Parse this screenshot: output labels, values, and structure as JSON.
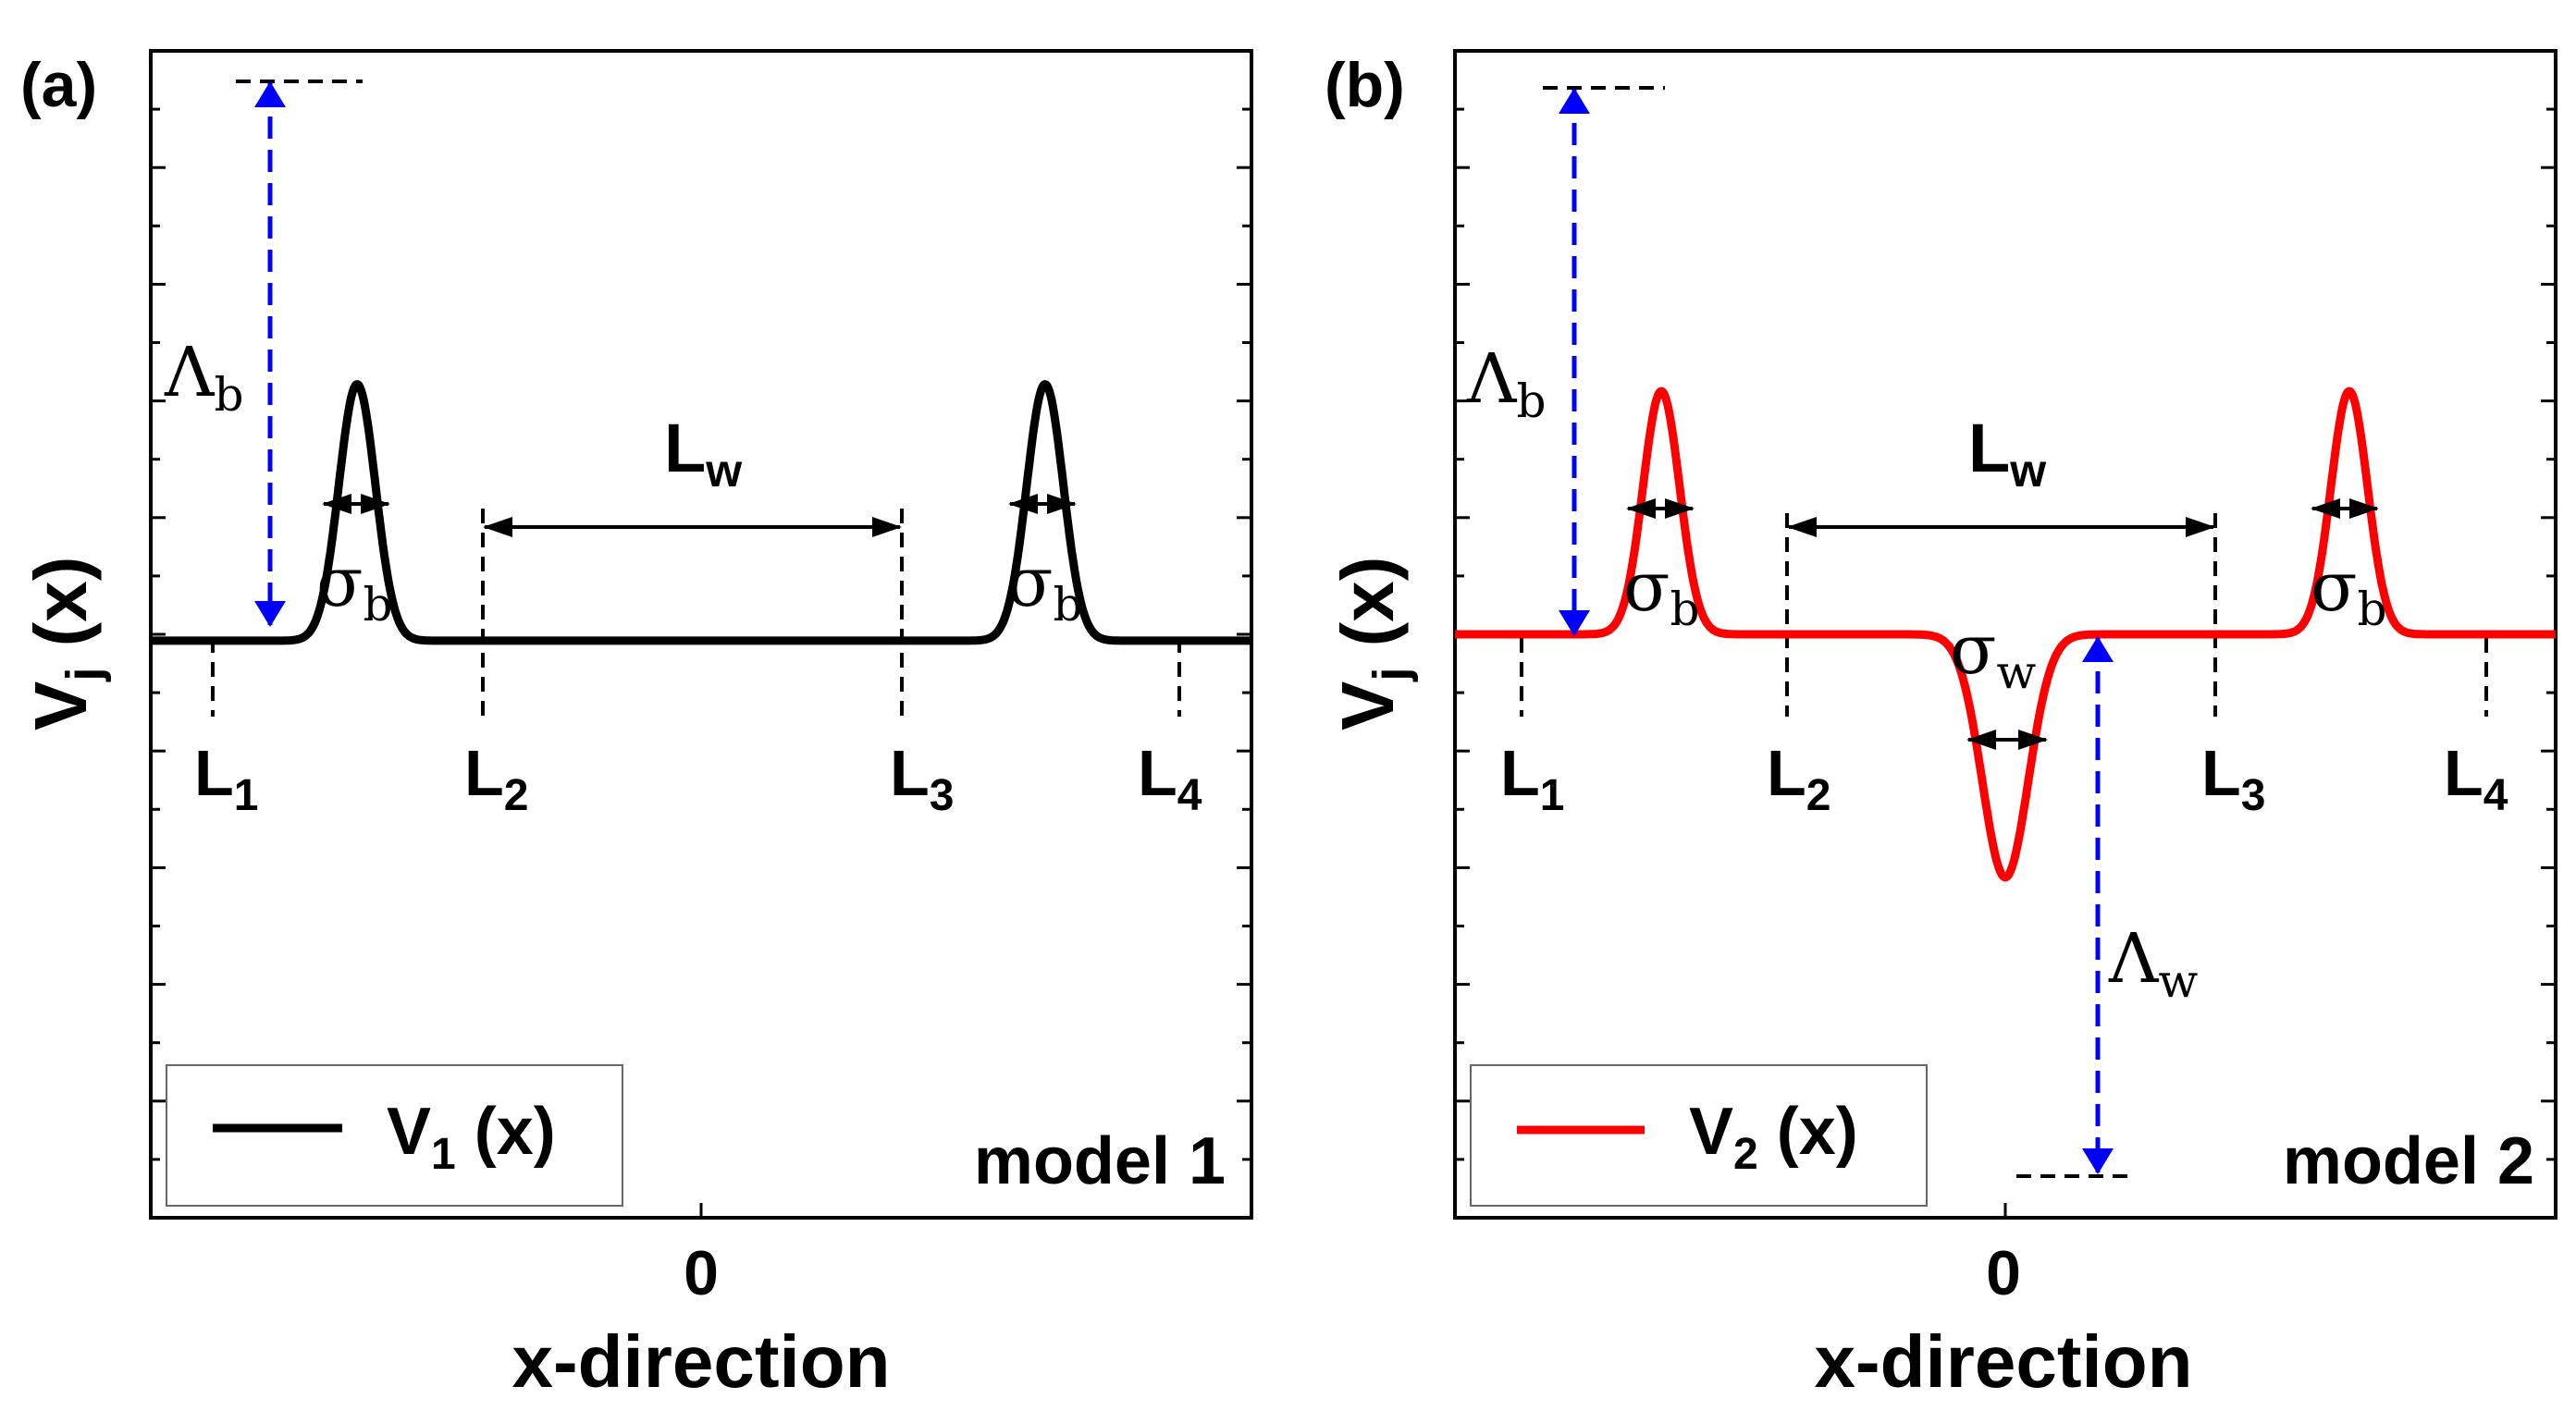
{
  "chart_data": [
    {
      "type": "line",
      "panel_label": "(a)",
      "model_label": "model 1",
      "xlabel": "x-direction",
      "ylabel": {
        "main": "V",
        "sub": "j",
        "tail": " (x)"
      },
      "x_tick_label": "0",
      "xlim": [
        -6,
        6
      ],
      "ylim": [
        -2.25,
        2.3
      ],
      "series": [
        {
          "name": "V1 (x)",
          "legend": {
            "main": "V",
            "sub": "1",
            "tail": " (x)"
          },
          "color": "#000000",
          "function": "barrier_height*exp(-(x+3.75)^2/(2*sigma_b^2)) + barrier_height*exp(-(x-3.75)^2/(2*sigma_b^2))",
          "parameters": {
            "barrier_height": 1.0,
            "barrier_centers": [
              -3.75,
              3.75
            ],
            "sigma_b": 0.2
          }
        }
      ],
      "boundaries": {
        "labels": [
          "L1",
          "L2",
          "L3",
          "L4"
        ],
        "positions": [
          -5.4,
          -2.4,
          2.2,
          5.2
        ]
      },
      "annotations": {
        "barrier_height": {
          "main": "Λ",
          "sub": "b"
        },
        "barrier_width": {
          "main": "σ",
          "sub": "b"
        },
        "well_width": {
          "main": "L",
          "sub": "w"
        }
      }
    },
    {
      "type": "line",
      "panel_label": "(b)",
      "model_label": "model 2",
      "xlabel": "x-direction",
      "ylabel": {
        "main": "V",
        "sub": "j",
        "tail": " (x)"
      },
      "x_tick_label": "0",
      "xlim": [
        -6,
        6
      ],
      "ylim": [
        -1.2,
        1.2
      ],
      "series": [
        {
          "name": "V2 (x)",
          "legend": {
            "main": "V",
            "sub": "2",
            "tail": " (x)"
          },
          "color": "#ff0000",
          "function": "barrier_height*[gauss(x,-3.75,sigma_b)+gauss(x,3.75,sigma_b)] - well_depth*gauss(x,0,sigma_w)",
          "parameters": {
            "barrier_height": 0.5,
            "barrier_centers": [
              -3.75,
              3.75
            ],
            "sigma_b": 0.2,
            "well_depth": 0.5,
            "sigma_w": 0.25
          }
        }
      ],
      "boundaries": {
        "labels": [
          "L1",
          "L2",
          "L3",
          "L4"
        ],
        "positions": [
          -5.4,
          -2.4,
          2.3,
          5.3
        ]
      },
      "annotations": {
        "barrier_height": {
          "main": "Λ",
          "sub": "b"
        },
        "barrier_width": {
          "main": "σ",
          "sub": "b"
        },
        "well_width": {
          "main": "L",
          "sub": "w"
        },
        "well_sigma": {
          "main": "σ",
          "sub": "w"
        },
        "well_depth": {
          "main": "Λ",
          "sub": "w"
        }
      }
    }
  ],
  "colors": {
    "axis": "#000000",
    "arrow_blue": "#0000ff",
    "curve_a": "#000000",
    "curve_b": "#ff0000"
  }
}
